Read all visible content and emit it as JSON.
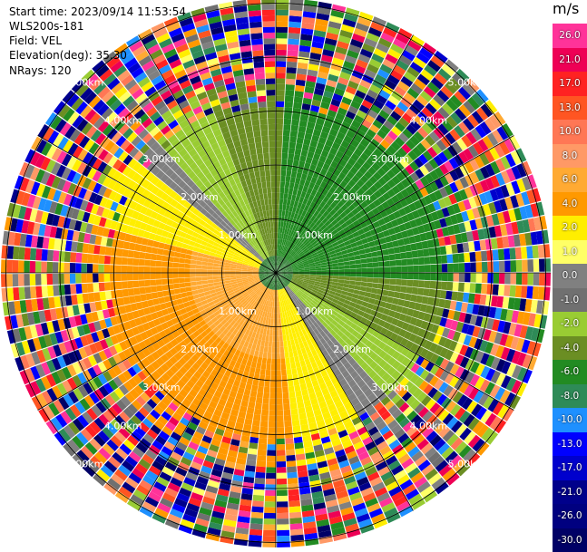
{
  "info": {
    "start_time": "Start time: 2023/09/14 11:53:54",
    "instrument": "WLS200s-181",
    "field": "Field: VEL",
    "elevation": "Elevation(deg): 35.30",
    "nrays": "NRays: 120"
  },
  "ring_labels": [
    "1.00km",
    "2.00km",
    "3.00km",
    "4.00km",
    "5.00km"
  ],
  "colorbar": {
    "unit": "m/s",
    "ticks": [
      "26.0",
      "21.0",
      "17.0",
      "13.0",
      "10.0",
      "8.0",
      "6.0",
      "4.0",
      "2.0",
      "1.0",
      "0.0",
      "-1.0",
      "-2.0",
      "-4.0",
      "-6.0",
      "-8.0",
      "-10.0",
      "-13.0",
      "-17.0",
      "-21.0",
      "-26.0",
      "-30.0"
    ],
    "colors": [
      "#ff3399",
      "#ee0055",
      "#ff2222",
      "#ff5522",
      "#ff7755",
      "#ff9966",
      "#ffaa33",
      "#ff9900",
      "#ffee00",
      "#ffff66",
      "#808080",
      "#707070",
      "#99cc33",
      "#6b8e23",
      "#228b22",
      "#2e8b57",
      "#1e90ff",
      "#0000ff",
      "#0000cd",
      "#00008b",
      "#000080",
      "#000066"
    ]
  }
}
